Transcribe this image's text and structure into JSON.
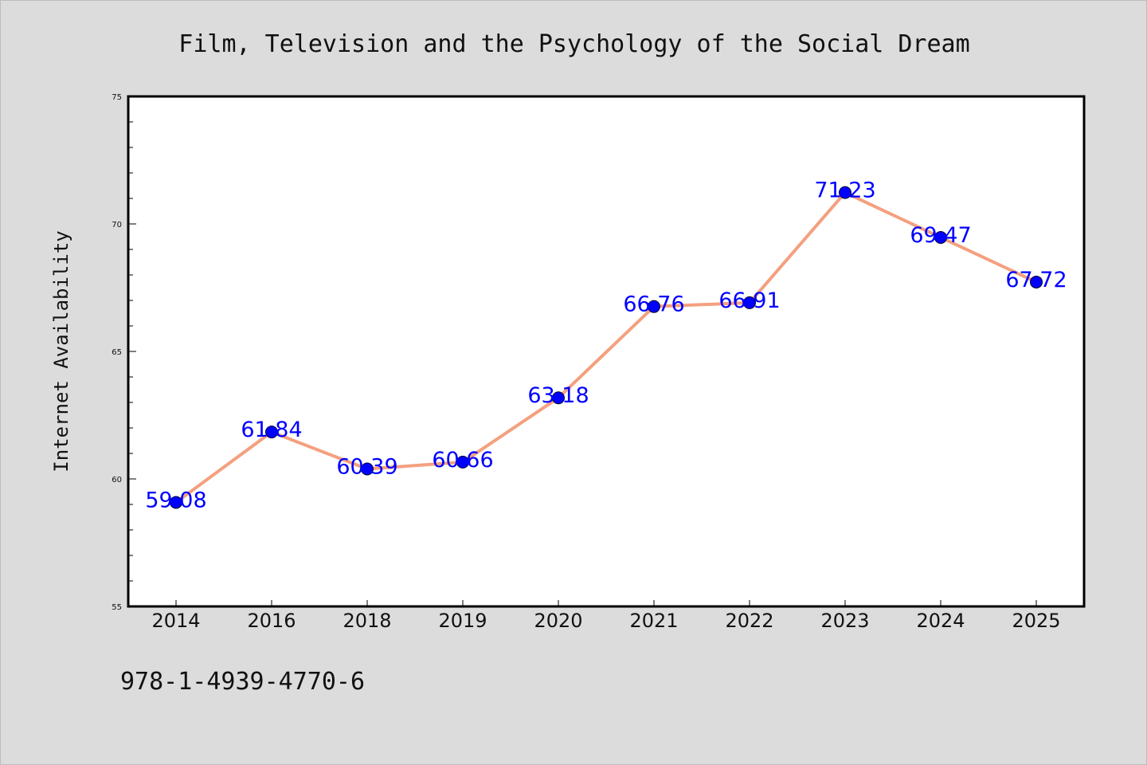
{
  "chart_data": {
    "type": "line",
    "title": "Film, Television and the Psychology of the Social Dream",
    "xlabel": "",
    "ylabel": "Internet Availability",
    "categories": [
      "2014",
      "2016",
      "2018",
      "2019",
      "2020",
      "2021",
      "2022",
      "2023",
      "2024",
      "2025"
    ],
    "series": [
      {
        "values": [
          59.08,
          61.84,
          60.39,
          60.66,
          63.18,
          66.76,
          66.91,
          71.23,
          69.47,
          67.72
        ],
        "labels": [
          "59.08",
          "61.84",
          "60.39",
          "60.66",
          "63.18",
          "66.76",
          "66.91",
          "71.23",
          "69.47",
          "67.72"
        ]
      }
    ],
    "ylim": [
      55,
      75
    ],
    "yticks": [
      "55",
      "60",
      "65",
      "70",
      "75"
    ],
    "grid": false,
    "legend": "none",
    "colors": {
      "line": "#f4a07f",
      "marker": "#0000ff",
      "data_label": "#0000ff",
      "plot_background": "#ffffff",
      "figure_background": "#dcdcdc"
    }
  },
  "footer": {
    "isbn": "978-1-4939-4770-6"
  }
}
